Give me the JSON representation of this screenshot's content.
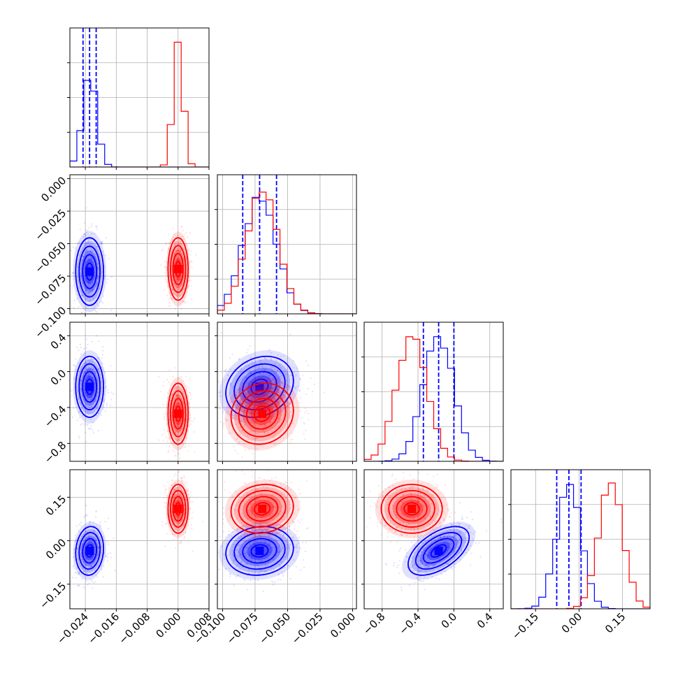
{
  "chart_data": {
    "type": "corner",
    "n_params": 4,
    "grid": true,
    "series": [
      {
        "color": "#0000ff",
        "quantiles_marked": true,
        "means": [
          -0.0229,
          -0.0715,
          -0.17,
          -0.035
        ],
        "stds": [
          0.0018,
          0.013,
          0.17,
          0.042
        ],
        "correlations": [
          [
            0,
            1,
            0.0
          ],
          [
            0,
            2,
            0.0
          ],
          [
            0,
            3,
            0.1
          ],
          [
            1,
            2,
            0.2
          ],
          [
            1,
            3,
            0.1
          ],
          [
            2,
            3,
            0.55
          ]
        ],
        "quantiles": [
          [
            -0.0246,
            -0.0229,
            -0.0212
          ],
          [
            -0.0845,
            -0.0715,
            -0.0585
          ],
          [
            -0.34,
            -0.17,
            0.0
          ],
          [
            -0.077,
            -0.035,
            0.007
          ]
        ]
      },
      {
        "color": "#ff0000",
        "quantiles_marked": false,
        "means": [
          0.0,
          -0.0695,
          -0.47,
          0.11
        ],
        "stds": [
          0.0013,
          0.012,
          0.17,
          0.042
        ],
        "correlations": [
          [
            0,
            1,
            0.0
          ],
          [
            0,
            2,
            0.0
          ],
          [
            0,
            3,
            0.0
          ],
          [
            1,
            2,
            0.1
          ],
          [
            1,
            3,
            0.1
          ],
          [
            2,
            3,
            0.0
          ]
        ]
      }
    ],
    "ranges": [
      [
        -0.028,
        0.008
      ],
      [
        -0.104,
        0.003
      ],
      [
        -1.0,
        0.55
      ],
      [
        -0.235,
        0.245
      ]
    ],
    "ticks": [
      {
        "values": [
          -0.024,
          -0.016,
          -0.008,
          0.0,
          0.008
        ],
        "labels": [
          "−0.024",
          "−0.016",
          "−0.008",
          "0.000",
          "0.008"
        ]
      },
      {
        "values": [
          -0.1,
          -0.075,
          -0.05,
          -0.025,
          0.0
        ],
        "labels": [
          "−0.100",
          "−0.075",
          "−0.050",
          "−0.025",
          "0.000"
        ]
      },
      {
        "values": [
          -0.8,
          -0.4,
          0.0,
          0.4
        ],
        "labels": [
          "−0.8",
          "−0.4",
          "0.0",
          "0.4"
        ]
      },
      {
        "values": [
          -0.15,
          0.0,
          0.15
        ],
        "labels": [
          "−0.15",
          "0.00",
          "0.15"
        ]
      }
    ]
  }
}
